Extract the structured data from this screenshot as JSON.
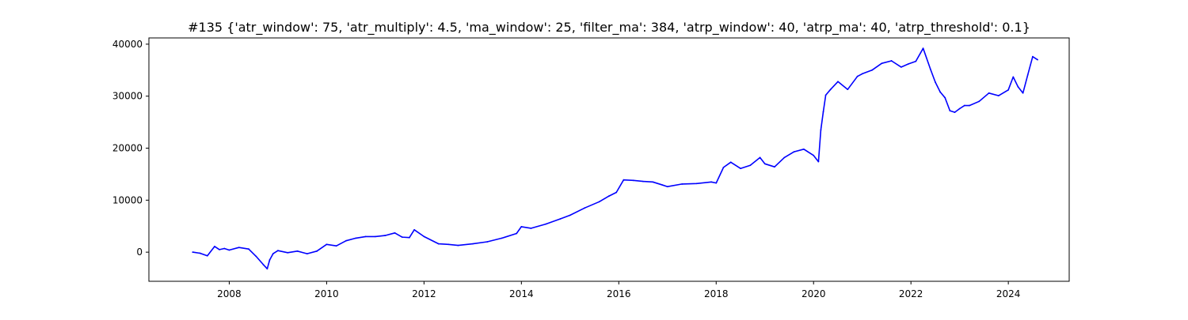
{
  "chart_data": {
    "type": "line",
    "title": "#135 {'atr_window': 75, 'atr_multiply': 4.5, 'ma_window': 25, 'filter_ma': 384, 'atrp_window': 40, 'atrp_ma': 40, 'atrp_threshold': 0.1}",
    "xlabel": "",
    "ylabel": "",
    "xlim": [
      2006.35,
      2025.25
    ],
    "ylim": [
      -5600,
      41200
    ],
    "x_ticks": [
      2008,
      2010,
      2012,
      2014,
      2016,
      2018,
      2020,
      2022,
      2024
    ],
    "y_ticks": [
      0,
      10000,
      20000,
      30000,
      40000
    ],
    "grid": false,
    "legend": "none",
    "series": [
      {
        "color": "#0000ff",
        "x": [
          2007.25,
          2007.4,
          2007.55,
          2007.7,
          2007.8,
          2007.9,
          2008.0,
          2008.2,
          2008.4,
          2008.55,
          2008.7,
          2008.78,
          2008.83,
          2008.9,
          2009.0,
          2009.2,
          2009.4,
          2009.6,
          2009.8,
          2010.0,
          2010.2,
          2010.4,
          2010.6,
          2010.8,
          2011.0,
          2011.2,
          2011.4,
          2011.55,
          2011.7,
          2011.8,
          2012.0,
          2012.3,
          2012.5,
          2012.7,
          2013.0,
          2013.3,
          2013.6,
          2013.9,
          2014.0,
          2014.2,
          2014.5,
          2014.8,
          2015.0,
          2015.3,
          2015.6,
          2015.8,
          2015.95,
          2016.1,
          2016.3,
          2016.5,
          2016.7,
          2016.9,
          2017.0,
          2017.3,
          2017.6,
          2017.9,
          2018.0,
          2018.15,
          2018.3,
          2018.5,
          2018.7,
          2018.9,
          2019.0,
          2019.2,
          2019.4,
          2019.6,
          2019.8,
          2020.0,
          2020.1,
          2020.15,
          2020.2,
          2020.25,
          2020.35,
          2020.5,
          2020.7,
          2020.9,
          2021.0,
          2021.2,
          2021.4,
          2021.6,
          2021.8,
          2021.95,
          2022.1,
          2022.25,
          2022.4,
          2022.5,
          2022.6,
          2022.7,
          2022.8,
          2022.9,
          2023.0,
          2023.1,
          2023.2,
          2023.4,
          2023.6,
          2023.8,
          2024.0,
          2024.1,
          2024.2,
          2024.3,
          2024.4,
          2024.5,
          2024.6
        ],
        "y": [
          0,
          -200,
          -700,
          1100,
          500,
          700,
          400,
          900,
          600,
          -800,
          -2400,
          -3200,
          -1500,
          -300,
          300,
          -100,
          200,
          -300,
          200,
          1500,
          1200,
          2200,
          2700,
          3000,
          3000,
          3200,
          3700,
          2900,
          2800,
          4300,
          3000,
          1600,
          1500,
          1300,
          1600,
          2000,
          2700,
          3600,
          4900,
          4600,
          5400,
          6400,
          7100,
          8500,
          9700,
          10800,
          11500,
          13900,
          13800,
          13600,
          13500,
          12900,
          12600,
          13100,
          13200,
          13500,
          13300,
          16300,
          17300,
          16100,
          16700,
          18200,
          17000,
          16400,
          18200,
          19300,
          19800,
          18600,
          17400,
          23500,
          27000,
          30200,
          31300,
          32800,
          31300,
          33800,
          34300,
          35000,
          36300,
          36800,
          35600,
          36200,
          36700,
          39200,
          35200,
          32700,
          30800,
          29700,
          27200,
          26900,
          27600,
          28200,
          28200,
          29000,
          30600,
          30100,
          31200,
          33700,
          31800,
          30600,
          34100,
          37600,
          37000
        ]
      }
    ]
  }
}
